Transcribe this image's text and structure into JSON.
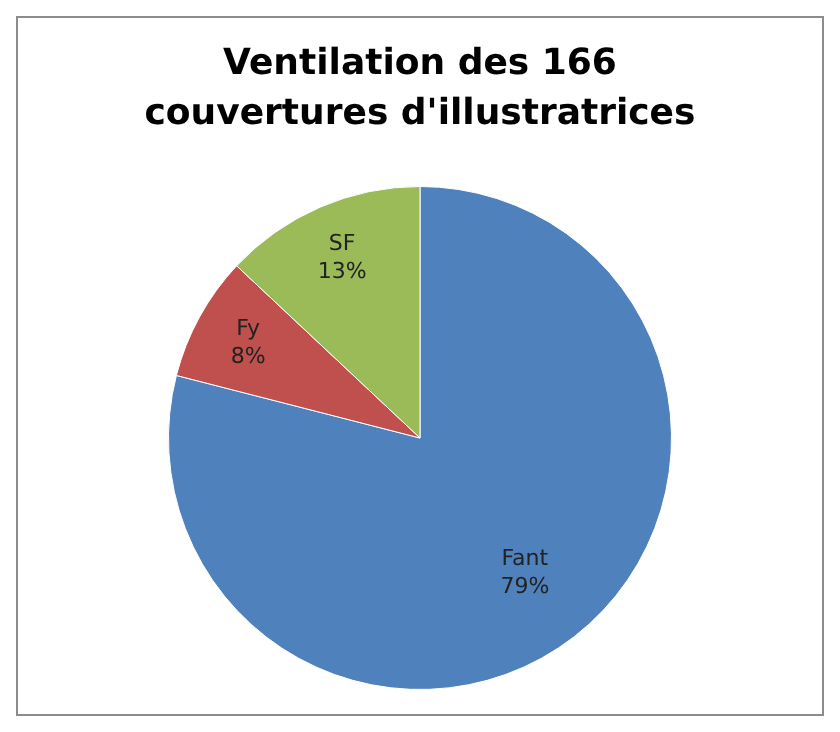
{
  "chart_data": {
    "type": "pie",
    "title": "Ventilation des 166 couvertures d'illustratrices",
    "categories": [
      "Fant",
      "Fy",
      "SF"
    ],
    "values": [
      79,
      8,
      13
    ],
    "value_labels": [
      "79%",
      "8%",
      "13%"
    ],
    "colors": [
      "#4f81bd",
      "#c0504d",
      "#9bbb59"
    ],
    "legend": false
  }
}
